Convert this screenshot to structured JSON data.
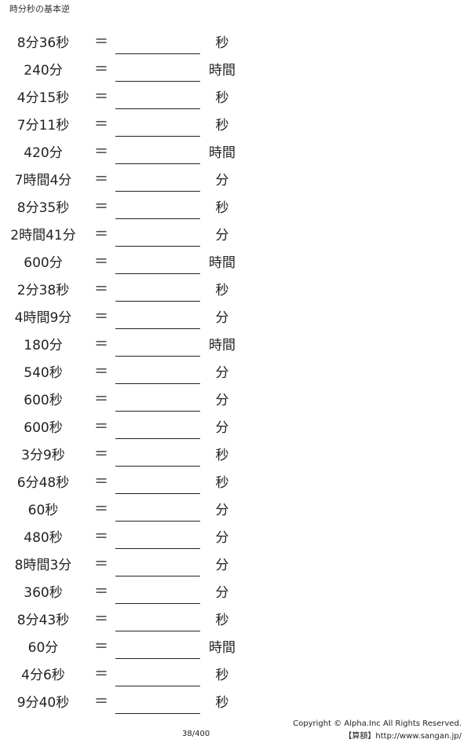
{
  "title": "時分秒の基本逆",
  "equals": "＝",
  "problems": [
    {
      "expr": "8分36秒",
      "unit": "秒"
    },
    {
      "expr": "240分",
      "unit": "時間"
    },
    {
      "expr": "4分15秒",
      "unit": "秒"
    },
    {
      "expr": "7分11秒",
      "unit": "秒"
    },
    {
      "expr": "420分",
      "unit": "時間"
    },
    {
      "expr": "7時間4分",
      "unit": "分"
    },
    {
      "expr": "8分35秒",
      "unit": "秒"
    },
    {
      "expr": "2時間41分",
      "unit": "分"
    },
    {
      "expr": "600分",
      "unit": "時間"
    },
    {
      "expr": "2分38秒",
      "unit": "秒"
    },
    {
      "expr": "4時間9分",
      "unit": "分"
    },
    {
      "expr": "180分",
      "unit": "時間"
    },
    {
      "expr": "540秒",
      "unit": "分"
    },
    {
      "expr": "600秒",
      "unit": "分"
    },
    {
      "expr": "600秒",
      "unit": "分"
    },
    {
      "expr": "3分9秒",
      "unit": "秒"
    },
    {
      "expr": "6分48秒",
      "unit": "秒"
    },
    {
      "expr": "60秒",
      "unit": "分"
    },
    {
      "expr": "480秒",
      "unit": "分"
    },
    {
      "expr": "8時間3分",
      "unit": "分"
    },
    {
      "expr": "360秒",
      "unit": "分"
    },
    {
      "expr": "8分43秒",
      "unit": "秒"
    },
    {
      "expr": "60分",
      "unit": "時間"
    },
    {
      "expr": "4分6秒",
      "unit": "秒"
    },
    {
      "expr": "9分40秒",
      "unit": "秒"
    }
  ],
  "footer": {
    "page": "38/400",
    "copyright": "Copyright © Alpha.Inc All Rights Reserved.",
    "site": "【算額】http://www.sangan.jp/"
  }
}
